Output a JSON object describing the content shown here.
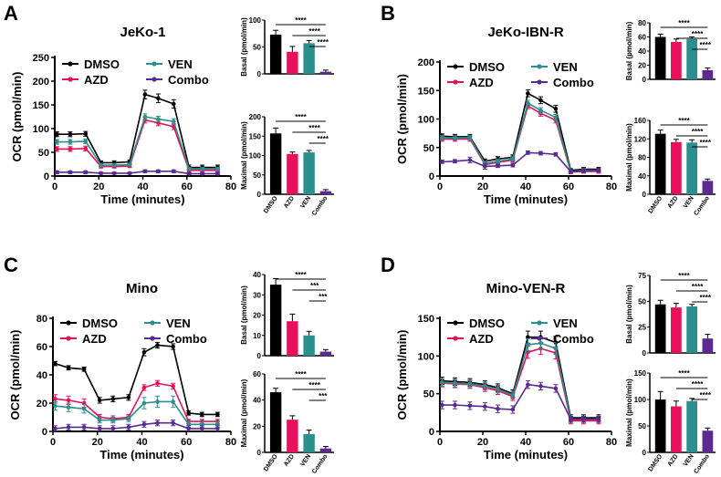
{
  "colors": {
    "DMSO": "#000000",
    "AZD": "#e8105a",
    "VEN": "#2a8f8d",
    "Combo": "#5b2a91"
  },
  "legend": [
    "DMSO",
    "AZD",
    "VEN",
    "Combo"
  ],
  "chart_data": [
    {
      "panel": "A",
      "type": "line",
      "title": "JeKo-1",
      "xlabel": "Time (minutes)",
      "ylabel": "OCR (pmol/min)",
      "xlim": [
        0,
        80
      ],
      "xticks": [
        0,
        20,
        40,
        60,
        80
      ],
      "ylim": [
        0,
        250
      ],
      "yticks": [
        0,
        50,
        100,
        150,
        200,
        250
      ],
      "x": [
        1,
        7,
        14,
        21,
        27,
        34,
        41,
        47,
        54,
        61,
        67,
        74
      ],
      "series": [
        {
          "name": "DMSO",
          "values": [
            88,
            88,
            89,
            28,
            28,
            30,
            172,
            164,
            152,
            18,
            18,
            18
          ],
          "err": [
            5,
            5,
            5,
            4,
            4,
            4,
            9,
            9,
            9,
            5,
            5,
            5
          ]
        },
        {
          "name": "AZD",
          "values": [
            57,
            57,
            58,
            20,
            20,
            21,
            118,
            112,
            104,
            12,
            12,
            12
          ],
          "err": [
            5,
            5,
            5,
            3,
            3,
            3,
            6,
            6,
            6,
            3,
            3,
            3
          ]
        },
        {
          "name": "VEN",
          "values": [
            72,
            72,
            73,
            23,
            23,
            24,
            125,
            120,
            115,
            15,
            15,
            15
          ],
          "err": [
            5,
            5,
            5,
            3,
            3,
            3,
            6,
            6,
            6,
            3,
            3,
            3
          ]
        },
        {
          "name": "Combo",
          "values": [
            8,
            8,
            8,
            6,
            6,
            6,
            10,
            10,
            10,
            5,
            5,
            5
          ],
          "err": [
            3,
            3,
            3,
            2,
            2,
            2,
            3,
            3,
            3,
            2,
            2,
            2
          ]
        }
      ]
    },
    {
      "panel": "A",
      "type": "bar",
      "ylabel": "Basal (pmol/min)",
      "categories": [
        "DMSO",
        "AZD",
        "VEN",
        "Combo"
      ],
      "ylim": [
        0,
        100
      ],
      "yticks": [
        0,
        50,
        100
      ],
      "values": [
        73,
        41,
        57,
        4
      ],
      "err": [
        8,
        10,
        5,
        3
      ],
      "significance": [
        "****",
        "****",
        "****"
      ]
    },
    {
      "panel": "A",
      "type": "bar",
      "ylabel": "Maximal (pmol/min)",
      "categories": [
        "DMSO",
        "AZD",
        "VEN",
        "Combo"
      ],
      "ylim": [
        0,
        200
      ],
      "yticks": [
        0,
        50,
        100,
        150,
        200
      ],
      "values": [
        157,
        104,
        108,
        8
      ],
      "err": [
        14,
        5,
        5,
        4
      ],
      "significance": [
        "****",
        "****",
        "****"
      ]
    },
    {
      "panel": "B",
      "type": "line",
      "title": "JeKo-IBN-R",
      "xlabel": "Time (minutes)",
      "ylabel": "OCR (pmol/min)",
      "xlim": [
        0,
        80
      ],
      "xticks": [
        0,
        20,
        40,
        60,
        80
      ],
      "ylim": [
        0,
        200
      ],
      "yticks": [
        0,
        50,
        100,
        150,
        200
      ],
      "x": [
        1,
        7,
        14,
        21,
        27,
        34,
        41,
        47,
        54,
        61,
        67,
        74
      ],
      "series": [
        {
          "name": "DMSO",
          "values": [
            70,
            69,
            69,
            26,
            30,
            33,
            145,
            133,
            118,
            10,
            12,
            12
          ],
          "err": [
            4,
            4,
            4,
            4,
            4,
            4,
            6,
            6,
            6,
            3,
            3,
            3
          ]
        },
        {
          "name": "AZD",
          "values": [
            65,
            65,
            65,
            20,
            24,
            28,
            123,
            110,
            98,
            7,
            8,
            8
          ],
          "err": [
            4,
            4,
            4,
            4,
            4,
            4,
            5,
            5,
            5,
            3,
            3,
            3
          ]
        },
        {
          "name": "VEN",
          "values": [
            67,
            67,
            67,
            22,
            26,
            30,
            128,
            115,
            103,
            8,
            10,
            10
          ],
          "err": [
            4,
            4,
            4,
            4,
            4,
            4,
            5,
            5,
            5,
            3,
            3,
            3
          ]
        },
        {
          "name": "Combo",
          "values": [
            25,
            26,
            28,
            17,
            18,
            19,
            41,
            40,
            38,
            8,
            9,
            10
          ],
          "err": [
            3,
            3,
            5,
            5,
            3,
            3,
            3,
            3,
            3,
            3,
            3,
            3
          ]
        }
      ]
    },
    {
      "panel": "B",
      "type": "bar",
      "ylabel": "Basal (pmol/min)",
      "categories": [
        "DMSO",
        "AZD",
        "VEN",
        "Combo"
      ],
      "ylim": [
        0,
        80
      ],
      "yticks": [
        0,
        20,
        40,
        60,
        80
      ],
      "values": [
        60,
        53,
        57,
        13
      ],
      "err": [
        4,
        4,
        3,
        3
      ],
      "significance": [
        "****",
        "****",
        "****"
      ]
    },
    {
      "panel": "B",
      "type": "bar",
      "ylabel": "Maximal (pmol/min)",
      "categories": [
        "DMSO",
        "AZD",
        "VEN",
        "Combo"
      ],
      "ylim": [
        0,
        160
      ],
      "yticks": [
        0,
        40,
        80,
        120,
        160
      ],
      "values": [
        131,
        113,
        112,
        29
      ],
      "err": [
        8,
        6,
        6,
        4
      ],
      "significance": [
        "****",
        "****",
        "****"
      ]
    },
    {
      "panel": "C",
      "type": "line",
      "title": "Mino",
      "xlabel": "Time (minutes)",
      "ylabel": "OCR (pmol/min)",
      "xlim": [
        0,
        80
      ],
      "xticks": [
        0,
        20,
        40,
        60,
        80
      ],
      "ylim": [
        0,
        80
      ],
      "yticks": [
        0,
        20,
        40,
        60,
        80
      ],
      "x": [
        1,
        7,
        14,
        21,
        27,
        34,
        41,
        47,
        54,
        61,
        67,
        74
      ],
      "series": [
        {
          "name": "DMSO",
          "values": [
            48,
            45,
            44,
            22,
            23,
            24,
            56,
            61,
            60,
            13,
            12,
            12
          ],
          "err": [
            1.5,
            1.5,
            1.5,
            2,
            2,
            2,
            2.5,
            2,
            2,
            1.5,
            1.5,
            1.5
          ]
        },
        {
          "name": "AZD",
          "values": [
            23,
            22,
            20,
            10,
            9,
            10,
            31,
            34,
            32,
            7,
            7,
            7
          ],
          "err": [
            3,
            3,
            3,
            2,
            2,
            2,
            2,
            2,
            2,
            1.5,
            1.5,
            1.5
          ]
        },
        {
          "name": "VEN",
          "values": [
            18,
            17,
            16,
            8,
            8,
            9,
            20,
            21,
            21,
            5,
            5,
            5
          ],
          "err": [
            3,
            3,
            3,
            2,
            2,
            2,
            4,
            4,
            4,
            2,
            2,
            2
          ]
        },
        {
          "name": "Combo",
          "values": [
            2,
            3,
            3,
            2,
            2,
            3,
            5,
            6,
            6,
            2,
            2,
            2
          ],
          "err": [
            2,
            2,
            2,
            2,
            2,
            2,
            2,
            2,
            2,
            2,
            2,
            2
          ]
        }
      ]
    },
    {
      "panel": "C",
      "type": "bar",
      "ylabel": "Basal (pmol/min)",
      "categories": [
        "DMSO",
        "AZD",
        "VEN",
        "Combo"
      ],
      "ylim": [
        0,
        40
      ],
      "yticks": [
        0,
        10,
        20,
        30,
        40
      ],
      "values": [
        35,
        17,
        10,
        2
      ],
      "err": [
        3,
        3.5,
        2,
        1
      ],
      "significance": [
        "****",
        "***",
        "***"
      ]
    },
    {
      "panel": "C",
      "type": "bar",
      "ylabel": "Maximal (pmol/min)",
      "categories": [
        "DMSO",
        "AZD",
        "VEN",
        "Combo"
      ],
      "ylim": [
        0,
        60
      ],
      "yticks": [
        0,
        20,
        40,
        60
      ],
      "values": [
        46,
        25,
        14,
        3
      ],
      "err": [
        3,
        3,
        3,
        1.5
      ],
      "significance": [
        "****",
        "****",
        "***"
      ]
    },
    {
      "panel": "D",
      "type": "line",
      "title": "Mino-VEN-R",
      "xlabel": "Time (minutes)",
      "ylabel": "OCR (pmol/min)",
      "xlim": [
        0,
        80
      ],
      "xticks": [
        0,
        20,
        40,
        60,
        80
      ],
      "ylim": [
        0,
        150
      ],
      "yticks": [
        0,
        50,
        100,
        150
      ],
      "x": [
        1,
        7,
        14,
        21,
        27,
        34,
        41,
        47,
        54,
        61,
        67,
        74
      ],
      "series": [
        {
          "name": "DMSO",
          "values": [
            67,
            66,
            65,
            62,
            58,
            50,
            125,
            125,
            118,
            18,
            18,
            18
          ],
          "err": [
            5,
            5,
            5,
            5,
            5,
            5,
            8,
            8,
            8,
            4,
            4,
            4
          ]
        },
        {
          "name": "AZD",
          "values": [
            64,
            63,
            62,
            58,
            54,
            46,
            105,
            110,
            104,
            14,
            14,
            14
          ],
          "err": [
            5,
            5,
            5,
            5,
            5,
            5,
            8,
            8,
            8,
            4,
            4,
            4
          ]
        },
        {
          "name": "VEN",
          "values": [
            65,
            64,
            63,
            60,
            56,
            48,
            115,
            117,
            110,
            16,
            16,
            16
          ],
          "err": [
            5,
            5,
            5,
            5,
            5,
            5,
            8,
            8,
            8,
            4,
            4,
            4
          ]
        },
        {
          "name": "Combo",
          "values": [
            35,
            35,
            34,
            33,
            30,
            29,
            62,
            60,
            57,
            16,
            16,
            16
          ],
          "err": [
            5,
            5,
            5,
            5,
            5,
            5,
            5,
            5,
            5,
            4,
            4,
            4
          ]
        }
      ]
    },
    {
      "panel": "D",
      "type": "bar",
      "ylabel": "Basal (pmol/min)",
      "categories": [
        "DMSO",
        "AZD",
        "VEN",
        "Combo"
      ],
      "ylim": [
        0,
        75
      ],
      "yticks": [
        0,
        25,
        50,
        75
      ],
      "values": [
        47,
        44,
        45,
        14
      ],
      "err": [
        4,
        4,
        2,
        4
      ],
      "significance": [
        "****",
        "****",
        "****"
      ]
    },
    {
      "panel": "D",
      "type": "bar",
      "ylabel": "Maximal (pmol/min)",
      "categories": [
        "DMSO",
        "AZD",
        "VEN",
        "Combo"
      ],
      "ylim": [
        0,
        150
      ],
      "yticks": [
        0,
        50,
        100,
        150
      ],
      "values": [
        100,
        87,
        97,
        41
      ],
      "err": [
        15,
        10,
        5,
        5
      ],
      "significance": [
        "****",
        "****",
        "****"
      ]
    }
  ]
}
